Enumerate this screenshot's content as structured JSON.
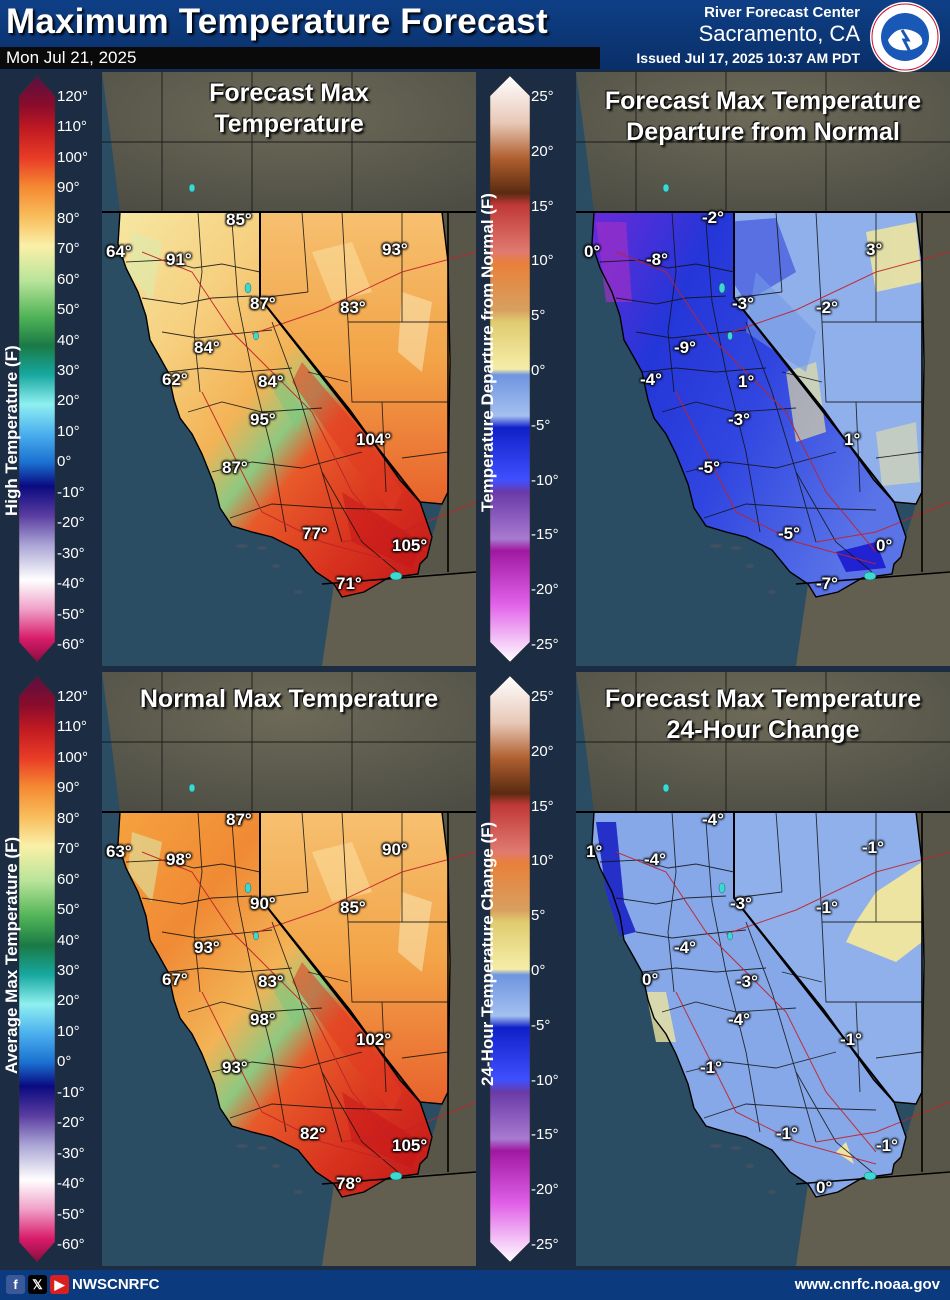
{
  "header": {
    "title": "Maximum Temperature Forecast",
    "date": "Mon Jul 21, 2025",
    "office_line1": "River Forecast Center",
    "office_line2": "Sacramento, CA",
    "issued": "Issued Jul 17, 2025 10:37 AM PDT",
    "logo_text": "NATIONAL WEATHER SERVICE"
  },
  "legends": {
    "abs_ticks": [
      "120°",
      "110°",
      "100°",
      "90°",
      "80°",
      "70°",
      "60°",
      "50°",
      "40°",
      "30°",
      "20°",
      "10°",
      "0°",
      "-10°",
      "-20°",
      "-30°",
      "-40°",
      "-50°",
      "-60°"
    ],
    "dep_ticks": [
      "25°",
      "20°",
      "15°",
      "10°",
      "5°",
      "0°",
      "-5°",
      "-10°",
      "-15°",
      "-20°",
      "-25°"
    ],
    "high_title": "High Temperature (F)",
    "avg_title": "Average Max Temperature (F)",
    "dep_title": "Temperature Departure from Normal (F)",
    "chg_title": "24-Hour Temperature Change (F)"
  },
  "panels": {
    "forecast": {
      "title_l1": "Forecast Max",
      "title_l2": "Temperature",
      "labels": [
        "85°",
        "64°",
        "91°",
        "93°",
        "87°",
        "83°",
        "84°",
        "62°",
        "84°",
        "95°",
        "104°",
        "87°",
        "77°",
        "105°",
        "71°"
      ]
    },
    "departure": {
      "title_l1": "Forecast Max Temperature",
      "title_l2": "Departure from Normal",
      "labels": [
        "-2°",
        "0°",
        "-8°",
        "3°",
        "-3°",
        "-2°",
        "-9°",
        "-4°",
        "1°",
        "-3°",
        "1°",
        "-5°",
        "-5°",
        "0°",
        "-7°"
      ]
    },
    "normal": {
      "title_l1": "Normal Max Temperature",
      "labels": [
        "87°",
        "63°",
        "98°",
        "90°",
        "90°",
        "85°",
        "93°",
        "67°",
        "83°",
        "98°",
        "102°",
        "93°",
        "82°",
        "105°",
        "78°"
      ]
    },
    "change": {
      "title_l1": "Forecast Max Temperature",
      "title_l2": "24-Hour Change",
      "labels": [
        "-4°",
        "1°",
        "-4°",
        "-1°",
        "-3°",
        "-1°",
        "-4°",
        "0°",
        "-3°",
        "-4°",
        "-1°",
        "-1°",
        "-1°",
        "-1°",
        "0°"
      ]
    }
  },
  "footer": {
    "handle": "NWSCNRFC",
    "website": "www.cnrfc.noaa.gov"
  },
  "colors": {
    "header_bg": "#0d3c80",
    "ocean": "#2b4d63",
    "land_outside": "#5e5c50",
    "warm_ramp": [
      "#f7e8a8",
      "#f6cf7a",
      "#f5a648",
      "#ef7d33",
      "#e34c24",
      "#c8201c"
    ],
    "cool_ramp": [
      "#8fb1ea",
      "#2b3fd8",
      "#5a22c8",
      "#a41aa6"
    ]
  }
}
